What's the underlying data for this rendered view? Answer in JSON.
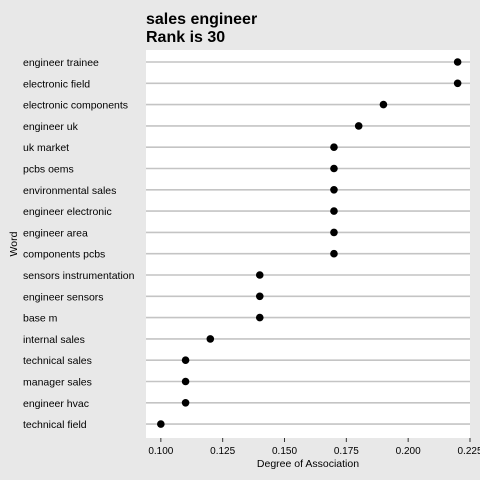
{
  "chart_data": {
    "type": "scatter",
    "title_line1": "sales engineer",
    "title_line2": "Rank is 30",
    "xlabel": "Degree of Association",
    "ylabel": "Word",
    "xlim": [
      0.094,
      0.225
    ],
    "xticks": [
      "0.100",
      "0.125",
      "0.150",
      "0.175",
      "0.200",
      "0.225"
    ],
    "xtick_values": [
      0.1,
      0.125,
      0.15,
      0.175,
      0.2,
      0.225
    ],
    "grid": "horizontal",
    "points": [
      {
        "word": "engineer trainee",
        "value": 0.22
      },
      {
        "word": "electronic field",
        "value": 0.22
      },
      {
        "word": "electronic components",
        "value": 0.19
      },
      {
        "word": "engineer uk",
        "value": 0.18
      },
      {
        "word": "uk market",
        "value": 0.17
      },
      {
        "word": "pcbs oems",
        "value": 0.17
      },
      {
        "word": "environmental sales",
        "value": 0.17
      },
      {
        "word": "engineer electronic",
        "value": 0.17
      },
      {
        "word": "engineer area",
        "value": 0.17
      },
      {
        "word": "components pcbs",
        "value": 0.17
      },
      {
        "word": "sensors instrumentation",
        "value": 0.14
      },
      {
        "word": "engineer sensors",
        "value": 0.14
      },
      {
        "word": "base m",
        "value": 0.14
      },
      {
        "word": "internal sales",
        "value": 0.12
      },
      {
        "word": "technical sales",
        "value": 0.11
      },
      {
        "word": "manager sales",
        "value": 0.11
      },
      {
        "word": "engineer hvac",
        "value": 0.11
      },
      {
        "word": "technical field",
        "value": 0.1
      }
    ]
  }
}
